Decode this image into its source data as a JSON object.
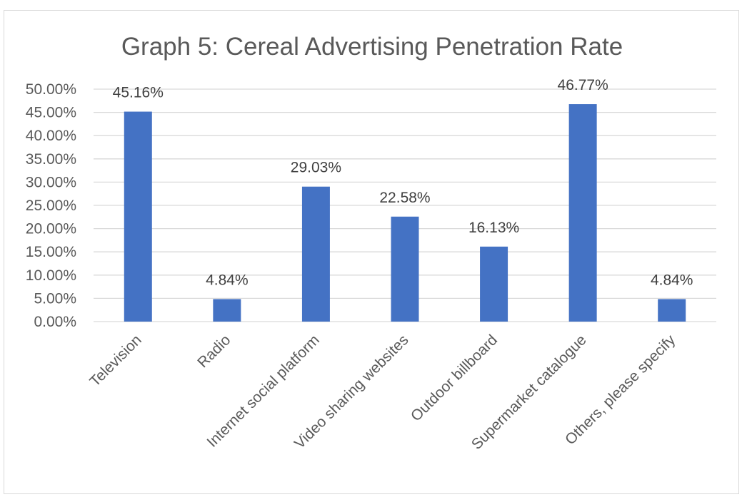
{
  "chart_data": {
    "type": "bar",
    "title": "Graph 5: Cereal Advertising Penetration Rate",
    "xlabel": "",
    "ylabel": "",
    "categories": [
      "Television",
      "Radio",
      "Internet social platform",
      "Video sharing websites",
      "Outdoor billboard",
      "Supermarket catalogue",
      "Others, please specify"
    ],
    "values": [
      45.16,
      4.84,
      29.03,
      22.58,
      16.13,
      46.77,
      4.84
    ],
    "data_labels": [
      "45.16%",
      "4.84%",
      "29.03%",
      "22.58%",
      "16.13%",
      "46.77%",
      "4.84%"
    ],
    "ylim": [
      0,
      50
    ],
    "yticks": [
      0,
      5,
      10,
      15,
      20,
      25,
      30,
      35,
      40,
      45,
      50
    ],
    "ytick_labels": [
      "0.00%",
      "5.00%",
      "10.00%",
      "15.00%",
      "20.00%",
      "25.00%",
      "30.00%",
      "35.00%",
      "40.00%",
      "45.00%",
      "50.00%"
    ],
    "grid": true,
    "legend": "none",
    "bar_color": "#4472c4"
  }
}
